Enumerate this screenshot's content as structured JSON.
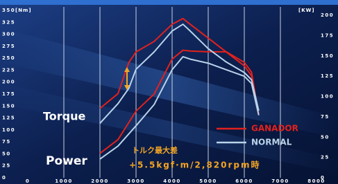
{
  "chart_data": {
    "type": "line",
    "y_unit": "[Nm]",
    "y2_unit": "[KW]",
    "x": [
      2000,
      2500,
      2800,
      3000,
      3500,
      4000,
      4300,
      4500,
      5000,
      5500,
      6000,
      6200,
      6400
    ],
    "series": [
      {
        "name": "GANADOR",
        "color": "#e3211d",
        "values": [
          145,
          176,
          241,
          263,
          285,
          321,
          333,
          321,
          292,
          263,
          234,
          213,
          133
        ],
        "power": [
          30,
          47,
          68,
          82,
          103,
          146,
          157,
          156,
          155,
          155,
          142,
          130,
          77
        ]
      },
      {
        "name": "NORMAL",
        "color": "#b9d3ea",
        "values": [
          114,
          155,
          187,
          227,
          263,
          307,
          321,
          307,
          270,
          242,
          220,
          205,
          140
        ],
        "power": [
          23,
          39,
          54,
          64,
          90,
          133,
          149,
          146,
          141,
          133,
          125,
          116,
          77
        ]
      }
    ],
    "xlim": [
      0,
      8000
    ],
    "xticks": [
      0,
      1000,
      2000,
      3000,
      4000,
      5000,
      6000,
      7000,
      8000
    ],
    "ylim": [
      0,
      350
    ],
    "yticks": [
      0,
      25,
      50,
      75,
      100,
      125,
      150,
      175,
      200,
      225,
      250,
      275,
      300,
      325,
      350
    ],
    "y2lim": [
      0,
      206
    ],
    "y2ticks": [
      0,
      25,
      50,
      75,
      100,
      125,
      150,
      175,
      200
    ],
    "grid": true,
    "annotations": {
      "torque": "Torque",
      "power": "Power",
      "diff_title": "トルク最大差",
      "diff_value": "+5.5kgf·m/2,820rpm時"
    }
  }
}
